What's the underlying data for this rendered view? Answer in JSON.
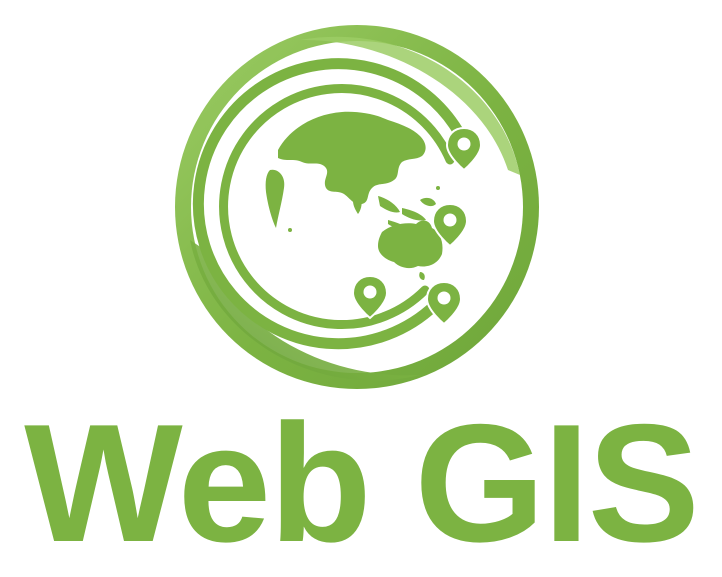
{
  "logo": {
    "name": "web-gis-logo",
    "wordmark": "Web GIS",
    "pin_count": 4,
    "colors": {
      "primary_green": "#7cb342",
      "light_green": "#9ccc65",
      "dark_green": "#689f38",
      "background": "#ffffff"
    },
    "icons": [
      "globe-icon",
      "map-pin-icon",
      "orbit-ring-icon"
    ]
  }
}
